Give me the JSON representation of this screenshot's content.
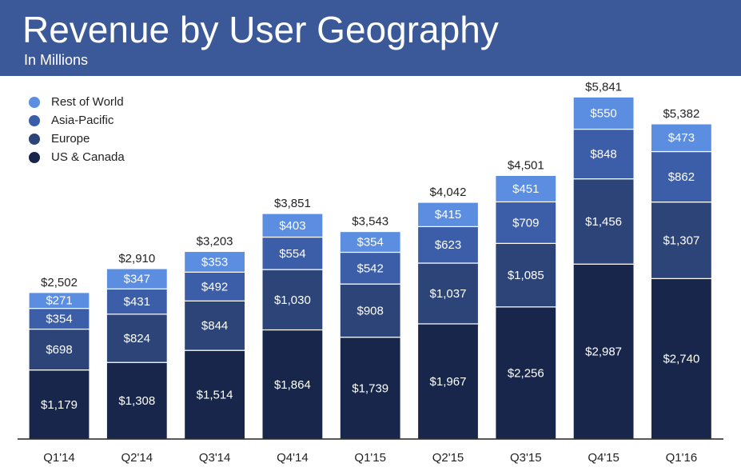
{
  "header": {
    "title": "Revenue by User Geography",
    "subtitle": "In Millions"
  },
  "colors": {
    "header_bg": "#3b5998",
    "series": [
      "#18264b",
      "#2c4478",
      "#3c5da7",
      "#5b8de0"
    ]
  },
  "chart_data": {
    "type": "bar",
    "stacked": true,
    "title": "Revenue by User Geography",
    "subtitle": "In Millions",
    "categories": [
      "Q1'14",
      "Q2'14",
      "Q3'14",
      "Q4'14",
      "Q1'15",
      "Q2'15",
      "Q3'15",
      "Q4'15",
      "Q1'16"
    ],
    "series": [
      {
        "name": "US & Canada",
        "values": [
          1179,
          1308,
          1514,
          1864,
          1739,
          1967,
          2256,
          2987,
          2740
        ]
      },
      {
        "name": "Europe",
        "values": [
          698,
          824,
          844,
          1030,
          908,
          1037,
          1085,
          1456,
          1307
        ]
      },
      {
        "name": "Asia-Pacific",
        "values": [
          354,
          431,
          492,
          554,
          542,
          623,
          709,
          848,
          862
        ]
      },
      {
        "name": "Rest of World",
        "values": [
          271,
          347,
          353,
          403,
          354,
          415,
          451,
          550,
          473
        ]
      }
    ],
    "segment_labels": [
      [
        "$1,179",
        "$1,308",
        "$1,514",
        "$1,864",
        "$1,739",
        "$1,967",
        "$2,256",
        "$2,987",
        "$2,740"
      ],
      [
        "$698",
        "$824",
        "$844",
        "$1,030",
        "$908",
        "$1,037",
        "$1,085",
        "$1,456",
        "$1,307"
      ],
      [
        "$354",
        "$431",
        "$492",
        "$554",
        "$542",
        "$623",
        "$709",
        "$848",
        "$862"
      ],
      [
        "$271",
        "$347",
        "$353",
        "$403",
        "$354",
        "$415",
        "$451",
        "$550",
        "$473"
      ]
    ],
    "totals": [
      2502,
      2910,
      3203,
      3851,
      3543,
      4042,
      4501,
      5841,
      5382
    ],
    "total_labels": [
      "$2,502",
      "$2,910",
      "$3,203",
      "$3,851",
      "$3,543",
      "$4,042",
      "$4,501",
      "$5,841",
      "$5,382"
    ],
    "legend": {
      "placement": "top-left",
      "entries": [
        "Rest of World",
        "Asia-Pacific",
        "Europe",
        "US & Canada"
      ]
    },
    "ylim": [
      0,
      6200
    ],
    "grid": false
  }
}
